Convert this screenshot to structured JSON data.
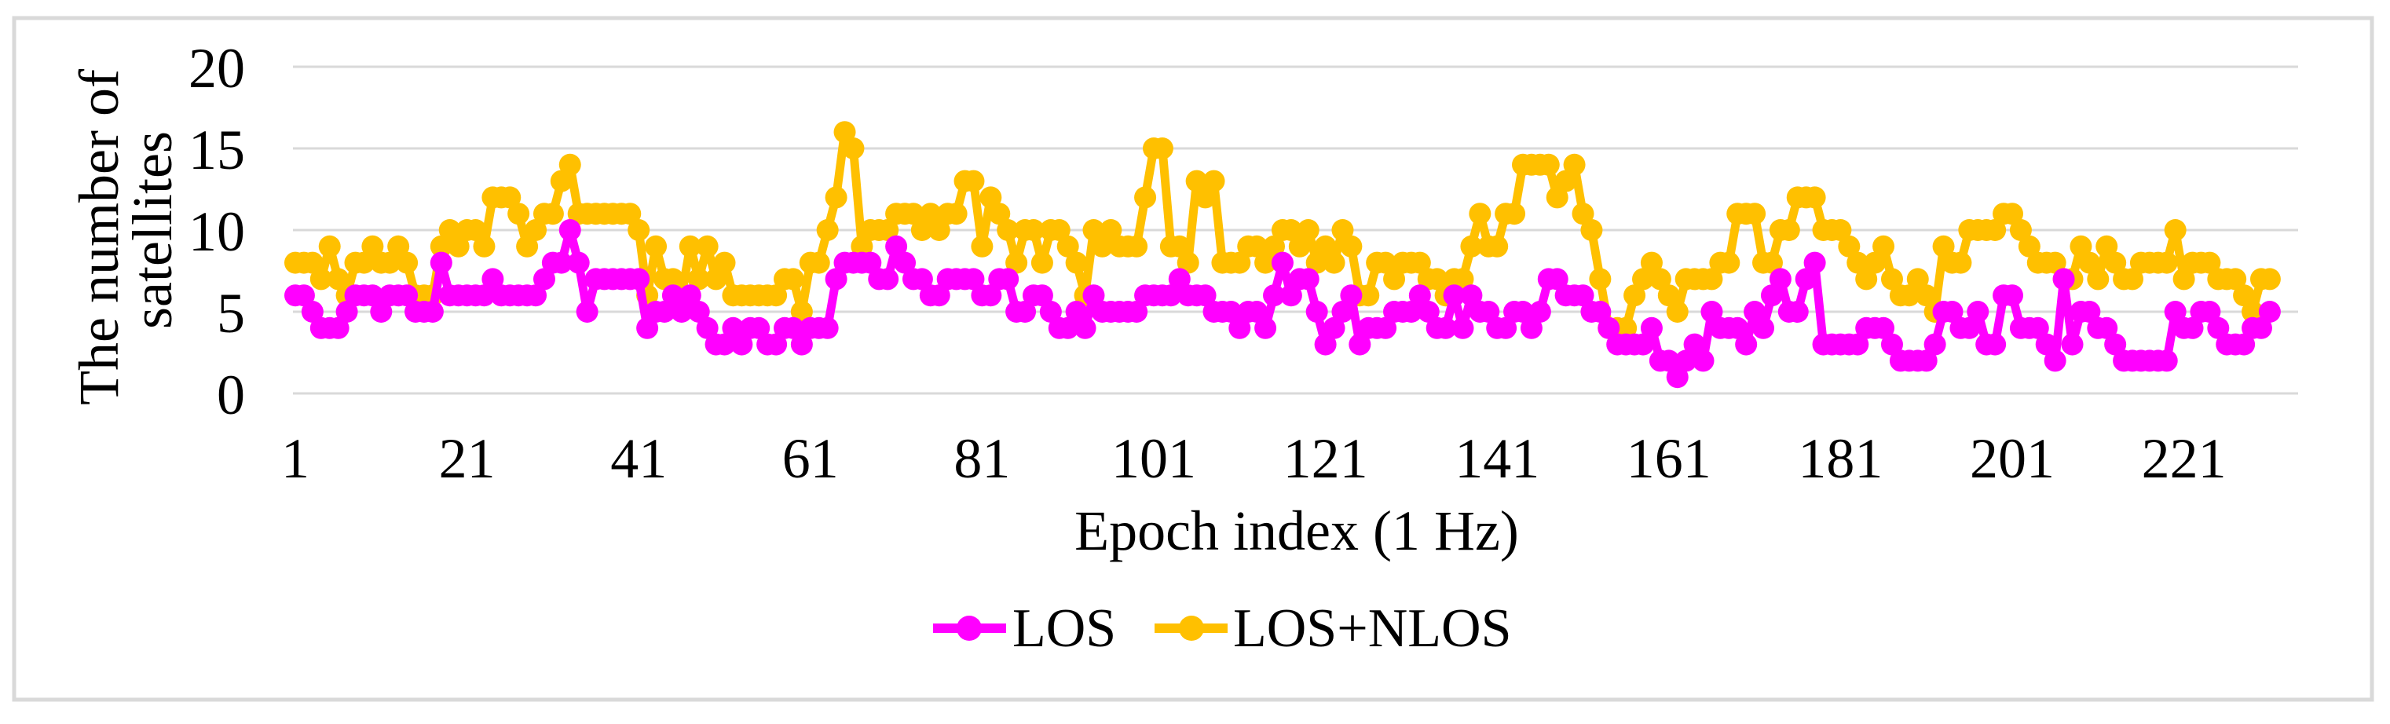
{
  "frame": {
    "border_color": "#d9d9d9",
    "background": "#ffffff"
  },
  "chart_data": {
    "type": "line",
    "title": "",
    "xlabel": "Epoch index (1 Hz)",
    "ylabel": "The number of satellites",
    "ylabel_lines": [
      "The number of",
      "satellites"
    ],
    "x_tick_labels": [
      1,
      21,
      41,
      61,
      81,
      101,
      121,
      141,
      161,
      181,
      201,
      221
    ],
    "y_tick_labels": [
      0,
      5,
      10,
      15,
      20
    ],
    "ylim": [
      0,
      20
    ],
    "xlim": [
      1,
      231
    ],
    "x_units": "epochs at 1 Hz",
    "grid": true,
    "gridline_color": "#d9d9d9",
    "legend_position": "bottom",
    "marker": "circle",
    "series": [
      {
        "name": "LOS",
        "color": "#ff00ff",
        "values": [
          6,
          6,
          5,
          4,
          4,
          4,
          5,
          6,
          6,
          6,
          5,
          6,
          6,
          6,
          5,
          5,
          5,
          8,
          6,
          6,
          6,
          6,
          6,
          7,
          6,
          6,
          6,
          6,
          6,
          7,
          8,
          8,
          10,
          8,
          5,
          7,
          7,
          7,
          7,
          7,
          7,
          4,
          5,
          5,
          6,
          5,
          6,
          5,
          4,
          3,
          3,
          4,
          3,
          4,
          4,
          3,
          3,
          4,
          4,
          3,
          4,
          4,
          4,
          7,
          8,
          8,
          8,
          8,
          7,
          7,
          9,
          8,
          7,
          7,
          6,
          6,
          7,
          7,
          7,
          7,
          6,
          6,
          7,
          7,
          5,
          5,
          6,
          6,
          5,
          4,
          4,
          5,
          4,
          6,
          5,
          5,
          5,
          5,
          5,
          6,
          6,
          6,
          6,
          7,
          6,
          6,
          6,
          5,
          5,
          5,
          4,
          5,
          5,
          4,
          6,
          8,
          6,
          7,
          7,
          5,
          3,
          4,
          5,
          6,
          3,
          4,
          4,
          4,
          5,
          5,
          5,
          6,
          5,
          4,
          4,
          6,
          4,
          6,
          5,
          5,
          4,
          4,
          5,
          5,
          4,
          5,
          7,
          7,
          6,
          6,
          6,
          5,
          5,
          4,
          3,
          3,
          3,
          3,
          4,
          2,
          2,
          1,
          2,
          3,
          2,
          5,
          4,
          4,
          4,
          3,
          5,
          4,
          6,
          7,
          5,
          5,
          7,
          8,
          3,
          3,
          3,
          3,
          3,
          4,
          4,
          4,
          3,
          2,
          2,
          2,
          2,
          3,
          5,
          5,
          4,
          4,
          5,
          3,
          3,
          6,
          6,
          4,
          4,
          4,
          3,
          2,
          7,
          3,
          5,
          5,
          4,
          4,
          3,
          2,
          2,
          2,
          2,
          2,
          2,
          5,
          4,
          4,
          5,
          5,
          4,
          3,
          3,
          3,
          4,
          4,
          5
        ]
      },
      {
        "name": "LOS+NLOS",
        "color": "#ffc000",
        "values": [
          8,
          8,
          8,
          7,
          9,
          7,
          6,
          8,
          8,
          9,
          8,
          8,
          9,
          8,
          6,
          6,
          6,
          9,
          10,
          9,
          10,
          10,
          9,
          12,
          12,
          12,
          11,
          9,
          10,
          11,
          11,
          13,
          14,
          11,
          11,
          11,
          11,
          11,
          11,
          11,
          10,
          6,
          9,
          7,
          7,
          6,
          9,
          7,
          9,
          7,
          8,
          6,
          6,
          6,
          6,
          6,
          6,
          7,
          7,
          5,
          8,
          8,
          10,
          12,
          16,
          15,
          9,
          10,
          10,
          10,
          11,
          11,
          11,
          10,
          11,
          10,
          11,
          11,
          13,
          13,
          9,
          12,
          11,
          10,
          8,
          10,
          10,
          8,
          10,
          10,
          9,
          8,
          6,
          10,
          9,
          10,
          9,
          9,
          9,
          12,
          15,
          15,
          9,
          9,
          8,
          13,
          12,
          13,
          8,
          8,
          8,
          9,
          9,
          8,
          9,
          10,
          10,
          9,
          10,
          8,
          9,
          8,
          10,
          9,
          6,
          6,
          8,
          8,
          7,
          8,
          8,
          8,
          7,
          7,
          6,
          7,
          7,
          9,
          11,
          9,
          9,
          11,
          11,
          14,
          14,
          14,
          14,
          12,
          13,
          14,
          11,
          10,
          7,
          4,
          4,
          4,
          6,
          7,
          8,
          7,
          6,
          5,
          7,
          7,
          7,
          7,
          8,
          8,
          11,
          11,
          11,
          8,
          8,
          10,
          10,
          12,
          12,
          12,
          10,
          10,
          10,
          9,
          8,
          7,
          8,
          9,
          7,
          6,
          6,
          7,
          6,
          5,
          9,
          8,
          8,
          10,
          10,
          10,
          10,
          11,
          11,
          10,
          9,
          8,
          8,
          8,
          7,
          7,
          9,
          8,
          7,
          9,
          8,
          7,
          7,
          8,
          8,
          8,
          8,
          10,
          7,
          8,
          8,
          8,
          7,
          7,
          7,
          6,
          5,
          7,
          7
        ]
      }
    ]
  }
}
